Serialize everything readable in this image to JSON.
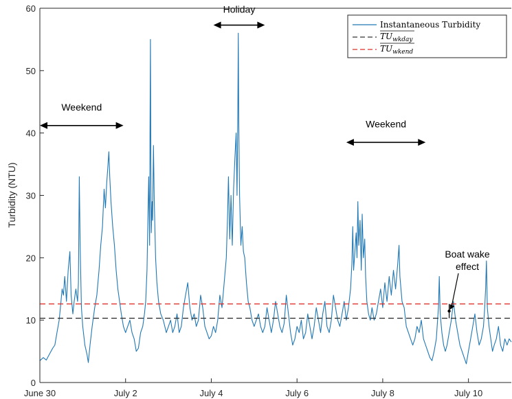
{
  "chart_data": {
    "type": "line",
    "ylabel": "Turbidity (NTU)",
    "ylim": [
      0,
      60
    ],
    "yticks": [
      0,
      10,
      20,
      30,
      40,
      50,
      60
    ],
    "xlim": [
      0,
      11
    ],
    "xticks": [
      {
        "value": 0,
        "label": "June 30"
      },
      {
        "value": 2,
        "label": "July 2"
      },
      {
        "value": 4,
        "label": "July 4"
      },
      {
        "value": 6,
        "label": "July 6"
      },
      {
        "value": 8,
        "label": "July 8"
      },
      {
        "value": 10,
        "label": "July 10"
      }
    ],
    "legend_position": "top-right",
    "series": [
      {
        "name": "Instantaneous Turbidity",
        "color": "#1f77b4",
        "style": "solid",
        "points": [
          [
            0.0,
            3.5
          ],
          [
            0.08,
            4
          ],
          [
            0.15,
            3.6
          ],
          [
            0.22,
            4.5
          ],
          [
            0.3,
            5.5
          ],
          [
            0.35,
            6
          ],
          [
            0.4,
            8
          ],
          [
            0.45,
            10
          ],
          [
            0.48,
            12
          ],
          [
            0.52,
            15
          ],
          [
            0.55,
            14
          ],
          [
            0.58,
            17
          ],
          [
            0.62,
            13
          ],
          [
            0.66,
            18
          ],
          [
            0.7,
            21
          ],
          [
            0.73,
            14
          ],
          [
            0.77,
            11
          ],
          [
            0.8,
            13
          ],
          [
            0.84,
            15
          ],
          [
            0.88,
            13
          ],
          [
            0.9,
            16
          ],
          [
            0.92,
            33
          ],
          [
            0.94,
            22
          ],
          [
            0.97,
            12
          ],
          [
            1.0,
            9
          ],
          [
            1.05,
            6
          ],
          [
            1.1,
            4.5
          ],
          [
            1.13,
            3.2
          ],
          [
            1.17,
            6
          ],
          [
            1.22,
            9
          ],
          [
            1.28,
            12
          ],
          [
            1.33,
            14
          ],
          [
            1.38,
            18
          ],
          [
            1.42,
            22
          ],
          [
            1.46,
            25
          ],
          [
            1.5,
            31
          ],
          [
            1.53,
            28
          ],
          [
            1.56,
            32
          ],
          [
            1.59,
            35
          ],
          [
            1.61,
            37
          ],
          [
            1.63,
            33
          ],
          [
            1.66,
            29
          ],
          [
            1.7,
            25
          ],
          [
            1.74,
            22
          ],
          [
            1.78,
            18
          ],
          [
            1.82,
            15
          ],
          [
            1.86,
            13
          ],
          [
            1.9,
            11
          ],
          [
            1.95,
            9
          ],
          [
            2.0,
            8
          ],
          [
            2.05,
            9
          ],
          [
            2.1,
            10
          ],
          [
            2.15,
            8
          ],
          [
            2.2,
            7
          ],
          [
            2.25,
            5
          ],
          [
            2.3,
            5.5
          ],
          [
            2.35,
            8
          ],
          [
            2.4,
            9
          ],
          [
            2.44,
            11
          ],
          [
            2.47,
            13
          ],
          [
            2.5,
            18
          ],
          [
            2.52,
            26
          ],
          [
            2.54,
            33
          ],
          [
            2.56,
            22
          ],
          [
            2.57,
            41
          ],
          [
            2.58,
            55
          ],
          [
            2.59,
            35
          ],
          [
            2.6,
            24
          ],
          [
            2.62,
            29
          ],
          [
            2.63,
            26
          ],
          [
            2.65,
            38
          ],
          [
            2.67,
            29
          ],
          [
            2.7,
            20
          ],
          [
            2.73,
            16
          ],
          [
            2.77,
            13
          ],
          [
            2.82,
            11
          ],
          [
            2.88,
            10
          ],
          [
            2.95,
            8
          ],
          [
            3.0,
            9
          ],
          [
            3.05,
            10
          ],
          [
            3.1,
            8
          ],
          [
            3.15,
            9
          ],
          [
            3.2,
            11
          ],
          [
            3.25,
            8
          ],
          [
            3.3,
            9
          ],
          [
            3.35,
            12
          ],
          [
            3.4,
            14
          ],
          [
            3.45,
            16
          ],
          [
            3.5,
            12
          ],
          [
            3.55,
            10
          ],
          [
            3.6,
            11
          ],
          [
            3.65,
            9
          ],
          [
            3.7,
            10
          ],
          [
            3.75,
            14
          ],
          [
            3.8,
            12
          ],
          [
            3.85,
            9
          ],
          [
            3.9,
            8
          ],
          [
            3.95,
            7
          ],
          [
            4.0,
            7.5
          ],
          [
            4.05,
            9
          ],
          [
            4.1,
            8
          ],
          [
            4.15,
            10
          ],
          [
            4.2,
            14
          ],
          [
            4.25,
            12
          ],
          [
            4.3,
            16
          ],
          [
            4.35,
            20
          ],
          [
            4.38,
            27
          ],
          [
            4.4,
            33
          ],
          [
            4.43,
            23
          ],
          [
            4.46,
            30
          ],
          [
            4.49,
            22
          ],
          [
            4.52,
            31
          ],
          [
            4.55,
            36
          ],
          [
            4.58,
            40
          ],
          [
            4.6,
            30
          ],
          [
            4.62,
            44
          ],
          [
            4.63,
            56
          ],
          [
            4.64,
            42
          ],
          [
            4.66,
            30
          ],
          [
            4.69,
            22
          ],
          [
            4.72,
            25
          ],
          [
            4.75,
            21
          ],
          [
            4.78,
            20
          ],
          [
            4.82,
            16
          ],
          [
            4.86,
            13
          ],
          [
            4.9,
            12
          ],
          [
            4.95,
            10
          ],
          [
            5.0,
            9
          ],
          [
            5.05,
            10
          ],
          [
            5.1,
            11
          ],
          [
            5.15,
            9
          ],
          [
            5.2,
            8
          ],
          [
            5.25,
            9
          ],
          [
            5.3,
            12
          ],
          [
            5.35,
            10
          ],
          [
            5.4,
            8
          ],
          [
            5.45,
            10
          ],
          [
            5.5,
            13
          ],
          [
            5.55,
            11
          ],
          [
            5.6,
            9
          ],
          [
            5.65,
            8
          ],
          [
            5.7,
            9.5
          ],
          [
            5.75,
            14
          ],
          [
            5.8,
            11
          ],
          [
            5.85,
            8
          ],
          [
            5.9,
            6
          ],
          [
            5.95,
            7
          ],
          [
            6.0,
            9
          ],
          [
            6.05,
            8
          ],
          [
            6.1,
            10
          ],
          [
            6.15,
            7
          ],
          [
            6.2,
            8
          ],
          [
            6.25,
            11
          ],
          [
            6.3,
            9
          ],
          [
            6.35,
            7
          ],
          [
            6.4,
            9
          ],
          [
            6.45,
            12
          ],
          [
            6.5,
            10
          ],
          [
            6.55,
            8
          ],
          [
            6.6,
            11
          ],
          [
            6.65,
            13
          ],
          [
            6.7,
            9
          ],
          [
            6.75,
            8
          ],
          [
            6.8,
            10
          ],
          [
            6.85,
            14
          ],
          [
            6.9,
            12
          ],
          [
            6.95,
            10
          ],
          [
            7.0,
            9
          ],
          [
            7.05,
            11
          ],
          [
            7.1,
            13
          ],
          [
            7.15,
            10
          ],
          [
            7.2,
            12
          ],
          [
            7.25,
            15
          ],
          [
            7.28,
            19
          ],
          [
            7.3,
            25
          ],
          [
            7.32,
            18
          ],
          [
            7.35,
            21
          ],
          [
            7.38,
            24
          ],
          [
            7.4,
            20
          ],
          [
            7.42,
            29
          ],
          [
            7.44,
            22
          ],
          [
            7.47,
            26
          ],
          [
            7.5,
            18
          ],
          [
            7.52,
            27
          ],
          [
            7.55,
            20
          ],
          [
            7.58,
            23
          ],
          [
            7.6,
            17
          ],
          [
            7.63,
            13
          ],
          [
            7.67,
            11
          ],
          [
            7.71,
            10
          ],
          [
            7.75,
            12
          ],
          [
            7.8,
            10
          ],
          [
            7.85,
            11
          ],
          [
            7.9,
            13
          ],
          [
            7.95,
            15
          ],
          [
            8.0,
            12
          ],
          [
            8.05,
            16
          ],
          [
            8.1,
            13
          ],
          [
            8.15,
            17
          ],
          [
            8.2,
            14
          ],
          [
            8.25,
            18
          ],
          [
            8.3,
            15
          ],
          [
            8.35,
            19
          ],
          [
            8.38,
            22
          ],
          [
            8.4,
            17
          ],
          [
            8.45,
            13
          ],
          [
            8.5,
            12
          ],
          [
            8.55,
            9
          ],
          [
            8.6,
            8
          ],
          [
            8.65,
            7
          ],
          [
            8.7,
            6
          ],
          [
            8.75,
            7
          ],
          [
            8.8,
            9
          ],
          [
            8.85,
            8
          ],
          [
            8.9,
            10
          ],
          [
            8.95,
            7
          ],
          [
            9.0,
            6
          ],
          [
            9.05,
            5
          ],
          [
            9.1,
            4
          ],
          [
            9.15,
            3.5
          ],
          [
            9.2,
            5
          ],
          [
            9.25,
            7
          ],
          [
            9.28,
            10
          ],
          [
            9.3,
            12
          ],
          [
            9.32,
            17
          ],
          [
            9.34,
            11
          ],
          [
            9.38,
            8
          ],
          [
            9.42,
            6
          ],
          [
            9.46,
            5
          ],
          [
            9.5,
            6
          ],
          [
            9.55,
            8
          ],
          [
            9.6,
            10
          ],
          [
            9.65,
            13
          ],
          [
            9.7,
            10
          ],
          [
            9.75,
            8
          ],
          [
            9.8,
            6
          ],
          [
            9.85,
            5
          ],
          [
            9.9,
            4
          ],
          [
            9.95,
            3
          ],
          [
            10.0,
            5
          ],
          [
            10.05,
            7
          ],
          [
            10.1,
            9
          ],
          [
            10.15,
            11
          ],
          [
            10.2,
            8
          ],
          [
            10.25,
            6
          ],
          [
            10.3,
            7
          ],
          [
            10.35,
            9
          ],
          [
            10.38,
            12
          ],
          [
            10.4,
            15
          ],
          [
            10.42,
            19.5
          ],
          [
            10.44,
            12
          ],
          [
            10.48,
            9
          ],
          [
            10.52,
            7
          ],
          [
            10.56,
            5
          ],
          [
            10.6,
            6
          ],
          [
            10.65,
            7
          ],
          [
            10.7,
            9
          ],
          [
            10.75,
            6
          ],
          [
            10.8,
            5
          ],
          [
            10.85,
            7
          ],
          [
            10.9,
            6
          ],
          [
            10.95,
            7
          ],
          [
            11.0,
            6.5
          ]
        ]
      },
      {
        "name": "TU_wkday",
        "color": "#333333",
        "style": "dashed",
        "constant": 10.3
      },
      {
        "name": "TU_wkend",
        "color": "#e0302a",
        "style": "dashed",
        "constant": 12.6
      }
    ],
    "legend": [
      {
        "type": "text",
        "text": "Instantaneous Turbidity",
        "color": "#1f77b4",
        "style": "solid"
      },
      {
        "type": "math",
        "main": "TU",
        "sub": "wkday",
        "color": "#333333",
        "style": "dashed"
      },
      {
        "type": "math",
        "main": "TU",
        "sub": "wkend",
        "color": "#e0302a",
        "style": "dashed"
      }
    ],
    "annotations": [
      {
        "text": "Weekend",
        "x_start": 0.0,
        "x_end": 1.95,
        "y": 41.2,
        "label_y": 43.6
      },
      {
        "text": "Holiday",
        "x_start": 4.05,
        "x_end": 5.25,
        "y": 57.3,
        "label_y": 59.3
      },
      {
        "text": "Weekend",
        "x_start": 7.15,
        "x_end": 9.0,
        "y": 38.5,
        "label_y": 40.9
      }
    ],
    "boat_wake": {
      "line1": "Boat wake",
      "line2": "effect",
      "x": 9.55,
      "y_top": 12.6,
      "y_bottom": 10.3
    }
  }
}
